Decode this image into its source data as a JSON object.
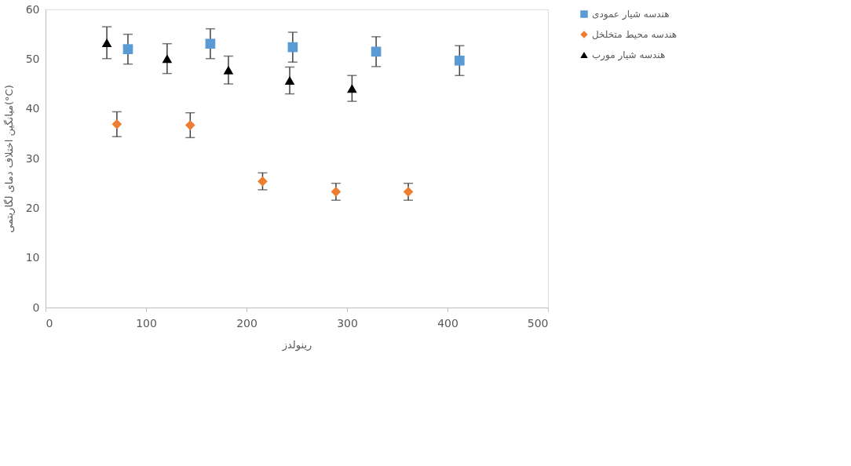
{
  "chart_data": {
    "type": "scatter",
    "xlabel": "رینولدز",
    "ylabel": "میانگین اختلاف دمای لگاریتمی(°C)",
    "xlim": [
      0,
      500
    ],
    "xticks": [
      0,
      100,
      200,
      300,
      400,
      500
    ],
    "ylim": [
      0,
      60
    ],
    "yticks": [
      0,
      10,
      20,
      30,
      40,
      50,
      60
    ],
    "grid": false,
    "legend": "top right",
    "series": [
      {
        "name": "هندسه شیار عمودی",
        "color": "#5b9bd5",
        "marker": "square",
        "x": [
          82,
          164,
          246,
          329,
          412
        ],
        "values": [
          52.0,
          53.1,
          52.4,
          51.5,
          49.7
        ],
        "errors": [
          3.0,
          3.0,
          3.0,
          3.0,
          3.0
        ]
      },
      {
        "name": "هندسه محیط متخلخل",
        "color": "#ed7d31",
        "marker": "diamond",
        "x": [
          71,
          144,
          216,
          289,
          361
        ],
        "values": [
          36.9,
          36.7,
          25.4,
          23.3,
          23.3
        ],
        "errors": [
          2.5,
          2.5,
          1.7,
          1.7,
          1.7
        ]
      },
      {
        "name": "هندسه شیار مورب",
        "color": "#000000",
        "marker": "triangle",
        "x": [
          61,
          121,
          182,
          243,
          305
        ],
        "values": [
          53.3,
          50.1,
          47.8,
          45.7,
          44.1
        ],
        "errors": [
          3.2,
          3.0,
          2.8,
          2.7,
          2.6
        ]
      }
    ]
  }
}
